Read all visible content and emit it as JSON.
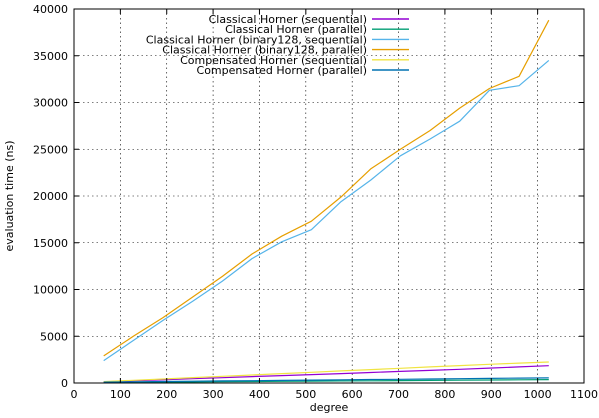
{
  "chart_data": {
    "type": "line",
    "xlabel": "degree",
    "ylabel": "evaluation time (ns)",
    "xlim": [
      0,
      1100
    ],
    "ylim": [
      0,
      40000
    ],
    "xticks": [
      0,
      100,
      200,
      300,
      400,
      500,
      600,
      700,
      800,
      900,
      1000,
      1100
    ],
    "yticks": [
      0,
      5000,
      10000,
      15000,
      20000,
      25000,
      30000,
      35000,
      40000
    ],
    "grid": true,
    "legend_position": "top-right",
    "series": [
      {
        "name": "Classical Horner (sequential)",
        "color": "#9400d3",
        "x": [
          64,
          128,
          192,
          256,
          320,
          384,
          448,
          512,
          576,
          640,
          704,
          768,
          832,
          896,
          960,
          1024
        ],
        "y": [
          120,
          230,
          340,
          460,
          570,
          680,
          790,
          900,
          1010,
          1120,
          1240,
          1350,
          1470,
          1590,
          1720,
          1850
        ]
      },
      {
        "name": "Classical Horner (parallel)",
        "color": "#009e73",
        "x": [
          64,
          128,
          192,
          256,
          320,
          384,
          448,
          512,
          576,
          640,
          704,
          768,
          832,
          896,
          960,
          1024
        ],
        "y": [
          60,
          80,
          100,
          120,
          140,
          160,
          180,
          200,
          220,
          240,
          260,
          280,
          300,
          320,
          340,
          360
        ]
      },
      {
        "name": "Classical Horner (binary128, sequential)",
        "color": "#56b4e9",
        "x": [
          64,
          128,
          192,
          256,
          320,
          384,
          448,
          512,
          576,
          640,
          704,
          768,
          832,
          896,
          960,
          1024
        ],
        "y": [
          2400,
          4550,
          6700,
          8750,
          10900,
          13300,
          15100,
          16400,
          19400,
          21700,
          24300,
          26100,
          28000,
          31300,
          31800,
          34500
        ]
      },
      {
        "name": "Classical Horner (binary128, parallel)",
        "color": "#e69f00",
        "x": [
          64,
          128,
          192,
          256,
          320,
          384,
          448,
          512,
          576,
          640,
          704,
          768,
          832,
          896,
          960,
          1024
        ],
        "y": [
          2900,
          5000,
          7000,
          9200,
          11400,
          13800,
          15700,
          17300,
          19900,
          22900,
          25000,
          27000,
          29400,
          31500,
          32800,
          38800
        ]
      },
      {
        "name": "Compensated Horner (sequential)",
        "color": "#f0e442",
        "x": [
          64,
          128,
          192,
          256,
          320,
          384,
          448,
          512,
          576,
          640,
          704,
          768,
          832,
          896,
          960,
          1024
        ],
        "y": [
          150,
          290,
          430,
          580,
          720,
          860,
          1000,
          1140,
          1290,
          1430,
          1570,
          1720,
          1860,
          2000,
          2130,
          2250
        ]
      },
      {
        "name": "Compensated Horner (parallel)",
        "color": "#0072b2",
        "x": [
          64,
          128,
          192,
          256,
          320,
          384,
          448,
          512,
          576,
          640,
          704,
          768,
          832,
          896,
          960,
          1024
        ],
        "y": [
          100,
          130,
          160,
          190,
          220,
          250,
          280,
          310,
          340,
          370,
          400,
          430,
          460,
          490,
          520,
          550
        ]
      }
    ]
  }
}
